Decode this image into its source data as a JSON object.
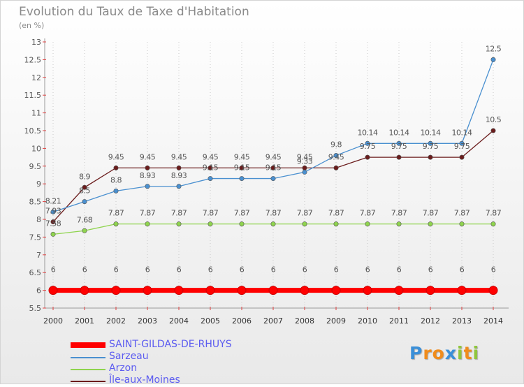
{
  "chart_data": {
    "type": "line",
    "title": "Evolution du Taux de Taxe d'Habitation",
    "subtitle": "(en %)",
    "categories": [
      "2000",
      "2001",
      "2002",
      "2003",
      "2004",
      "2005",
      "2006",
      "2007",
      "2008",
      "2009",
      "2010",
      "2011",
      "2012",
      "2013",
      "2014"
    ],
    "ylim": [
      5.5,
      13
    ],
    "yticks": [
      "5.5",
      "6",
      "6.5",
      "7",
      "7.5",
      "8",
      "8.5",
      "9",
      "9.5",
      "10",
      "10.5",
      "11",
      "11.5",
      "12",
      "12.5",
      "13"
    ],
    "grid": "vertical dotted",
    "legend_position": "bottom-left",
    "series": [
      {
        "name": "SAINT-GILDAS-DE-RHUYS",
        "color": "#ff0000",
        "values": [
          6,
          6,
          6,
          6,
          6,
          6,
          6,
          6,
          6,
          6,
          6,
          6,
          6,
          6,
          6
        ],
        "labels": [
          "6",
          "6",
          "6",
          "6",
          "6",
          "6",
          "6",
          "6",
          "6",
          "6",
          "6",
          "6",
          "6",
          "6",
          "6"
        ]
      },
      {
        "name": "Sarzeau",
        "color": "#4a90d0",
        "values": [
          8.21,
          8.5,
          8.8,
          8.93,
          8.93,
          9.15,
          9.15,
          9.15,
          9.33,
          9.8,
          10.14,
          10.14,
          10.14,
          10.14,
          12.5
        ],
        "labels": [
          "8.21",
          "8.5",
          "8.8",
          "8.93",
          "8.93",
          "9.15",
          "9.15",
          "9.15",
          "9.33",
          "9.8",
          "10.14",
          "10.14",
          "10.14",
          "10.14",
          "12.5"
        ]
      },
      {
        "name": "Arzon",
        "color": "#8fd44e",
        "values": [
          7.58,
          7.68,
          7.87,
          7.87,
          7.87,
          7.87,
          7.87,
          7.87,
          7.87,
          7.87,
          7.87,
          7.87,
          7.87,
          7.87,
          7.87
        ],
        "labels": [
          "7.58",
          "7.68",
          "7.87",
          "7.87",
          "7.87",
          "7.87",
          "7.87",
          "7.87",
          "7.87",
          "7.87",
          "7.87",
          "7.87",
          "7.87",
          "7.87",
          "7.87"
        ]
      },
      {
        "name": "Île-aux-Moines",
        "color": "#6b1c1c",
        "values": [
          7.93,
          8.9,
          9.45,
          9.45,
          9.45,
          9.45,
          9.45,
          9.45,
          9.45,
          9.45,
          9.75,
          9.75,
          9.75,
          9.75,
          10.5
        ],
        "labels": [
          "7.93",
          "8.9",
          "9.45",
          "9.45",
          "9.45",
          "9.45",
          "9.45",
          "9.45",
          "9.45",
          "9.45",
          "9.75",
          "9.75",
          "9.75",
          "9.75",
          "10.5"
        ]
      }
    ]
  },
  "brand": {
    "letters": [
      "P",
      "r",
      "o",
      "x",
      "i",
      "t",
      "i"
    ],
    "colors": [
      "#3a8fd8",
      "#f08c1c",
      "#f08c1c",
      "#3a8fd8",
      "#8fc63d",
      "#f08c1c",
      "#8fc63d"
    ]
  }
}
